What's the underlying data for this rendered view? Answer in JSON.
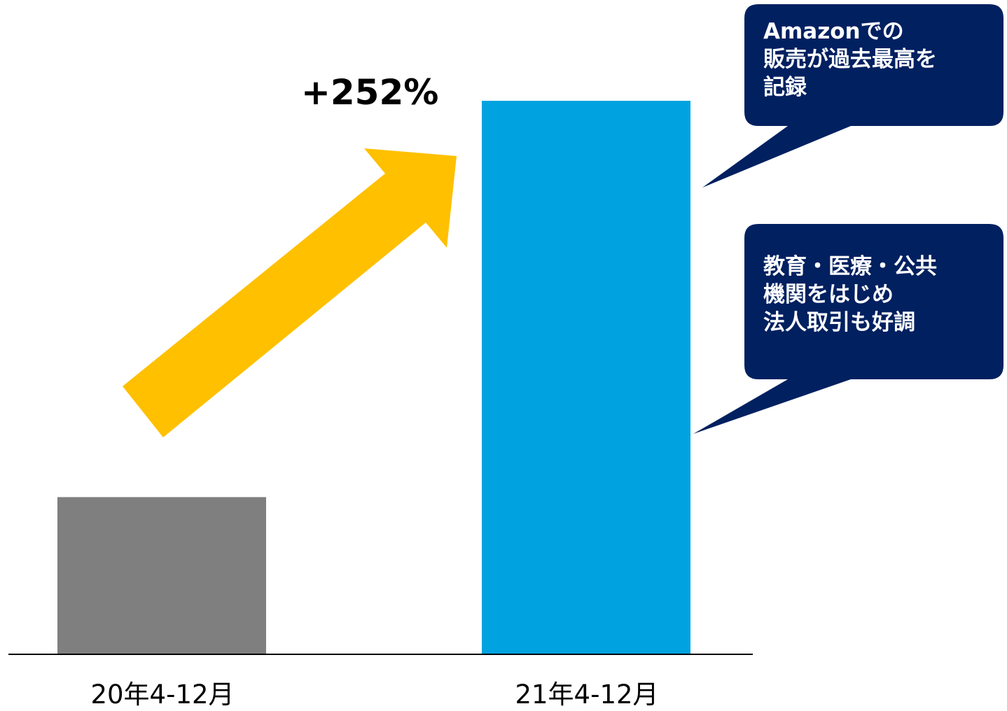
{
  "chart_data": {
    "type": "bar",
    "categories": [
      "20年4-12月",
      "21年4-12月"
    ],
    "values": [
      28.4,
      100
    ],
    "ylim": [
      0,
      110
    ],
    "title": "",
    "xlabel": "",
    "ylabel": "",
    "grid": false,
    "annotation": "+252%"
  },
  "colors": {
    "bar_prev": "#7f7f7f",
    "bar_curr": "#00a3e0",
    "arrow": "#ffc000",
    "callout": "#002060",
    "axis": "#000000"
  },
  "callouts": [
    {
      "text": "Amazonでの\n販売が過去最高を\n記録"
    },
    {
      "text": "教育・医療・公共\n機関をはじめ\n法人取引も好調"
    }
  ]
}
